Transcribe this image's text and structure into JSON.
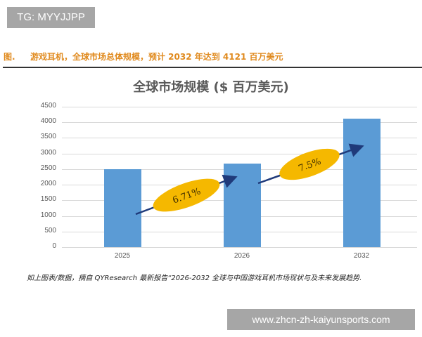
{
  "watermark_top": "TG: MYYJJPP",
  "watermark_bottom": "www.zhcn-zh-kaiyunsports.com",
  "figure": {
    "label": "图.",
    "caption": "游戏耳机，全球市场总体规模，预计 2032 年达到 4121 百万美元"
  },
  "source_note": "如上图表/数据，摘自 QYResearch 最新报告“2026-2032 全球与中国游戏耳机市场现状与及未来发展趋势.",
  "colors": {
    "bar": "#5b9bd5",
    "caption": "#e08a1e",
    "growth_ellipse": "#f5b800",
    "arrow": "#1f3a7a"
  },
  "chart_data": {
    "type": "bar",
    "title": "全球市场规模 ($ 百万美元)",
    "categories": [
      "2025",
      "2026",
      "2032"
    ],
    "values": [
      2500,
      2668,
      4121
    ],
    "xlabel": "",
    "ylabel": "",
    "ylim": [
      0,
      4500
    ],
    "yticks": [
      "0",
      "500",
      "1000",
      "1500",
      "2000",
      "2500",
      "3000",
      "3500",
      "4000",
      "4500"
    ],
    "grid": true,
    "legend": null,
    "annotations": [
      {
        "text": "6.71%",
        "from": "2025",
        "to": "2026",
        "type": "growth-arrow"
      },
      {
        "text": "7.5%",
        "from": "2026",
        "to": "2032",
        "type": "growth-arrow"
      }
    ]
  }
}
